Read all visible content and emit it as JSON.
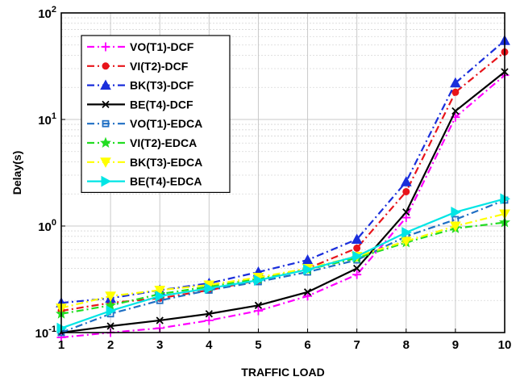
{
  "chart_data": {
    "type": "line",
    "xlabel": "TRAFFIC LOAD",
    "ylabel": "Delay(s)",
    "x": [
      1,
      2,
      3,
      4,
      5,
      6,
      7,
      8,
      9,
      10
    ],
    "xlim": [
      1,
      10
    ],
    "ylim": [
      0.1,
      100
    ],
    "yscale": "log",
    "grid": true,
    "legend_position": "top-left",
    "x_ticks": [
      "1",
      "2",
      "3",
      "4",
      "5",
      "6",
      "7",
      "8",
      "9",
      "10"
    ],
    "y_ticks": [
      {
        "value": 0.1,
        "base": "10",
        "exp": "-1"
      },
      {
        "value": 1,
        "base": "10",
        "exp": "0"
      },
      {
        "value": 10,
        "base": "10",
        "exp": "1"
      },
      {
        "value": 100,
        "base": "10",
        "exp": "2"
      }
    ],
    "series": [
      {
        "name": "VO(T1)-DCF",
        "color": "#ff00ff",
        "dash": "dashdot",
        "marker": "plus",
        "values": [
          0.09,
          0.1,
          0.11,
          0.13,
          0.16,
          0.22,
          0.35,
          1.2,
          10.5,
          26
        ]
      },
      {
        "name": "VI(T2)-DCF",
        "color": "#e8141a",
        "dash": "dashdot",
        "marker": "circle",
        "values": [
          0.16,
          0.19,
          0.21,
          0.25,
          0.31,
          0.4,
          0.62,
          2.1,
          18,
          43
        ]
      },
      {
        "name": "BK(T3)-DCF",
        "color": "#1a2edb",
        "dash": "dashdot",
        "marker": "triangle",
        "values": [
          0.19,
          0.21,
          0.25,
          0.29,
          0.37,
          0.48,
          0.75,
          2.6,
          22,
          55
        ]
      },
      {
        "name": "BE(T4)-DCF",
        "color": "#000000",
        "dash": "solid",
        "marker": "x",
        "values": [
          0.1,
          0.115,
          0.13,
          0.15,
          0.18,
          0.24,
          0.4,
          1.35,
          12,
          28
        ]
      },
      {
        "name": "VO(T1)-EDCA",
        "color": "#1f6fc4",
        "dash": "dashdot",
        "marker": "square",
        "values": [
          0.1,
          0.15,
          0.2,
          0.25,
          0.3,
          0.37,
          0.48,
          0.8,
          1.15,
          1.75
        ]
      },
      {
        "name": "VI(T2)-EDCA",
        "color": "#22dd22",
        "dash": "dashdot",
        "marker": "star",
        "values": [
          0.15,
          0.18,
          0.23,
          0.27,
          0.32,
          0.39,
          0.5,
          0.7,
          0.95,
          1.08
        ]
      },
      {
        "name": "BK(T3)-EDCA",
        "color": "#ffff00",
        "dash": "dashdot",
        "marker": "triangle-down",
        "values": [
          0.17,
          0.22,
          0.25,
          0.28,
          0.33,
          0.4,
          0.52,
          0.72,
          1.0,
          1.3
        ]
      },
      {
        "name": "BE(T4)-EDCA",
        "color": "#00e5e5",
        "dash": "solid",
        "marker": "triangle-right",
        "values": [
          0.11,
          0.16,
          0.22,
          0.26,
          0.31,
          0.39,
          0.52,
          0.87,
          1.35,
          1.8
        ]
      }
    ]
  }
}
